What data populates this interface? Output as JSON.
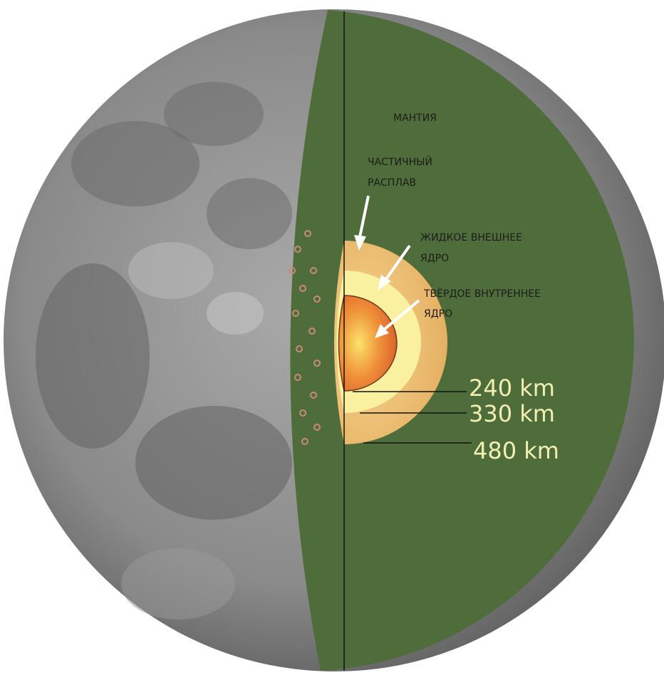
{
  "title_labels": {
    "mantle": "МАНТИЯ",
    "partial_melt": [
      "ЧАСТИЧНЫЙ",
      "РАСПЛАВ"
    ],
    "outer_core": [
      "ЖИДКОЕ ВНЕШНЕЕ",
      "ЯДРО"
    ],
    "inner_core": [
      "ТВЁРДОЕ ВНУТРЕННЕЕ",
      "ЯДРО"
    ]
  },
  "radii": [
    "240 km",
    "330 km",
    "480 km"
  ]
}
